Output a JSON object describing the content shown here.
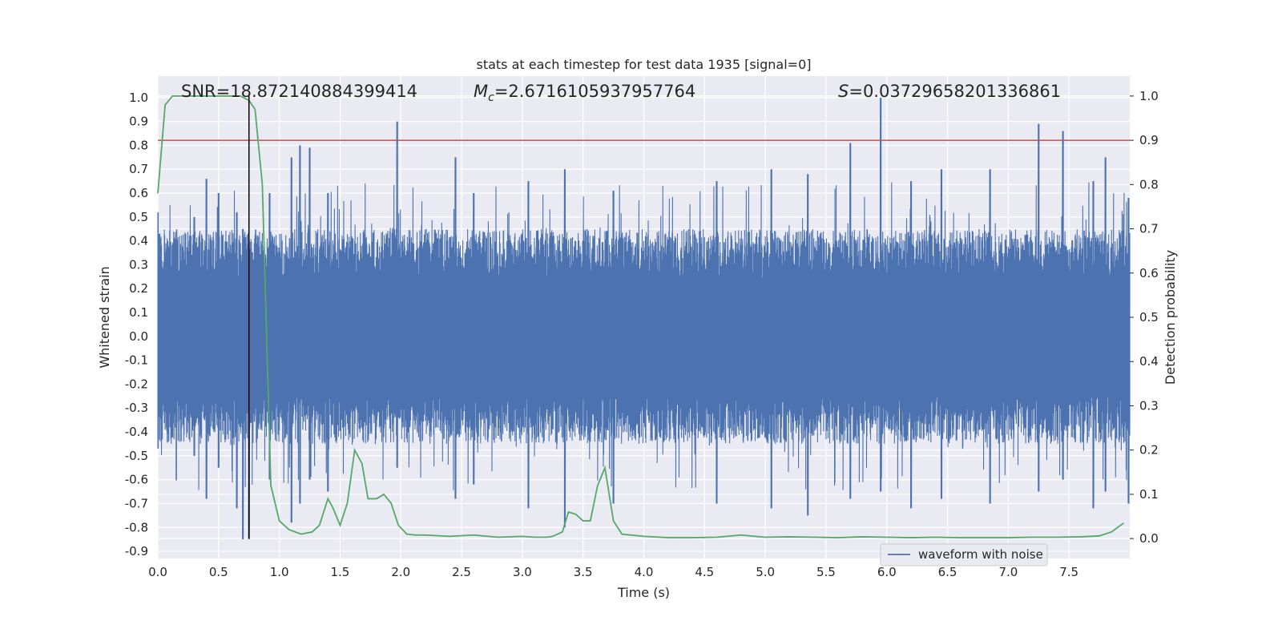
{
  "chart_data": {
    "type": "line",
    "title": "stats at each timestep for test data 1935 [signal=0]",
    "xlabel": "Time (s)",
    "ylabel": "Whitened strain",
    "ylabel_right": "Detection probability",
    "xlim": [
      0.0,
      8.0
    ],
    "ylim": [
      -0.93,
      1.09
    ],
    "ylim_right": [
      -0.045,
      1.045
    ],
    "x_ticks": [
      "0.0",
      "0.5",
      "1.0",
      "1.5",
      "2.0",
      "2.5",
      "3.0",
      "3.5",
      "4.0",
      "4.5",
      "5.0",
      "5.5",
      "6.0",
      "6.5",
      "7.0",
      "7.5"
    ],
    "y_ticks": [
      "1.0",
      "0.9",
      "0.8",
      "0.7",
      "0.6",
      "0.5",
      "0.4",
      "0.3",
      "0.2",
      "0.1",
      "0.0",
      "-0.1",
      "-0.2",
      "-0.3",
      "-0.4",
      "-0.5",
      "-0.6",
      "-0.7",
      "-0.8",
      "-0.9"
    ],
    "y_ticks_right": [
      "1.0",
      "0.9",
      "0.8",
      "0.7",
      "0.6",
      "0.5",
      "0.4",
      "0.3",
      "0.2",
      "0.1",
      "0.0"
    ],
    "annotations": {
      "snr": "SNR=18.872140884399414",
      "mc_symbol": "M",
      "mc_sub": "c",
      "mc_value": "=2.6716105937957764",
      "s_symbol": "S",
      "s_value": "=0.03729658201336861"
    },
    "legend": {
      "label": "waveform with noise",
      "location": "lower-center-right"
    },
    "threshold_right": 0.9,
    "vertical_marker_x": 0.75,
    "series": [
      {
        "name": "waveform with noise",
        "axis": "left",
        "color": "#4c72b0",
        "envelope_peaks": [
          [
            0.0,
            0.52,
            -0.47
          ],
          [
            0.3,
            0.5,
            -0.5
          ],
          [
            0.4,
            0.66,
            -0.68
          ],
          [
            0.5,
            0.6,
            -0.55
          ],
          [
            0.65,
            0.52,
            -0.72
          ],
          [
            0.7,
            0.45,
            -0.85
          ],
          [
            0.75,
            0.4,
            -0.85
          ],
          [
            0.92,
            0.6,
            -0.6
          ],
          [
            1.1,
            0.75,
            -0.78
          ],
          [
            1.17,
            0.8,
            -0.7
          ],
          [
            1.25,
            0.79,
            -0.6
          ],
          [
            1.4,
            0.6,
            -0.65
          ],
          [
            1.97,
            0.9,
            -0.55
          ],
          [
            2.45,
            0.75,
            -0.68
          ],
          [
            2.6,
            0.6,
            -0.62
          ],
          [
            3.05,
            0.65,
            -0.72
          ],
          [
            3.35,
            0.7,
            -0.8
          ],
          [
            3.75,
            0.61,
            -0.7
          ],
          [
            4.6,
            0.65,
            -0.7
          ],
          [
            5.05,
            0.7,
            -0.72
          ],
          [
            5.35,
            0.68,
            -0.75
          ],
          [
            5.7,
            0.81,
            -0.68
          ],
          [
            5.95,
            1.0,
            -0.65
          ],
          [
            6.2,
            0.65,
            -0.72
          ],
          [
            6.45,
            0.7,
            -0.68
          ],
          [
            6.85,
            0.7,
            -0.7
          ],
          [
            7.25,
            0.89,
            -0.65
          ],
          [
            7.45,
            0.86,
            -0.6
          ],
          [
            7.7,
            0.65,
            -0.72
          ],
          [
            7.8,
            0.75,
            -0.65
          ],
          [
            7.99,
            0.58,
            -0.7
          ]
        ],
        "typical_amplitude": 0.45
      },
      {
        "name": "",
        "axis": "right",
        "color": "#55a868",
        "x": [
          0.0,
          0.06,
          0.12,
          0.2,
          0.3,
          0.4,
          0.5,
          0.6,
          0.68,
          0.75,
          0.8,
          0.86,
          0.93,
          1.0,
          1.08,
          1.18,
          1.27,
          1.33,
          1.4,
          1.44,
          1.5,
          1.56,
          1.62,
          1.68,
          1.73,
          1.8,
          1.86,
          1.92,
          1.98,
          2.05,
          2.12,
          2.2,
          2.4,
          2.6,
          2.8,
          3.0,
          3.1,
          3.2,
          3.25,
          3.33,
          3.38,
          3.44,
          3.5,
          3.56,
          3.62,
          3.68,
          3.75,
          3.82,
          4.0,
          4.2,
          4.4,
          4.6,
          4.8,
          5.0,
          5.2,
          5.4,
          5.6,
          5.8,
          6.0,
          6.2,
          6.4,
          6.6,
          6.8,
          7.0,
          7.2,
          7.4,
          7.6,
          7.75,
          7.85,
          7.95
        ],
        "y": [
          0.78,
          0.98,
          1.0,
          1.0,
          1.0,
          1.0,
          1.0,
          1.0,
          1.0,
          0.99,
          0.97,
          0.8,
          0.12,
          0.04,
          0.02,
          0.01,
          0.015,
          0.03,
          0.09,
          0.07,
          0.03,
          0.08,
          0.2,
          0.17,
          0.09,
          0.09,
          0.1,
          0.08,
          0.03,
          0.01,
          0.008,
          0.008,
          0.005,
          0.008,
          0.003,
          0.005,
          0.003,
          0.003,
          0.005,
          0.015,
          0.06,
          0.055,
          0.04,
          0.04,
          0.12,
          0.16,
          0.04,
          0.01,
          0.005,
          0.002,
          0.002,
          0.003,
          0.008,
          0.003,
          0.004,
          0.003,
          0.002,
          0.004,
          0.003,
          0.002,
          0.003,
          0.002,
          0.002,
          0.002,
          0.003,
          0.003,
          0.004,
          0.006,
          0.015,
          0.035
        ]
      }
    ]
  }
}
